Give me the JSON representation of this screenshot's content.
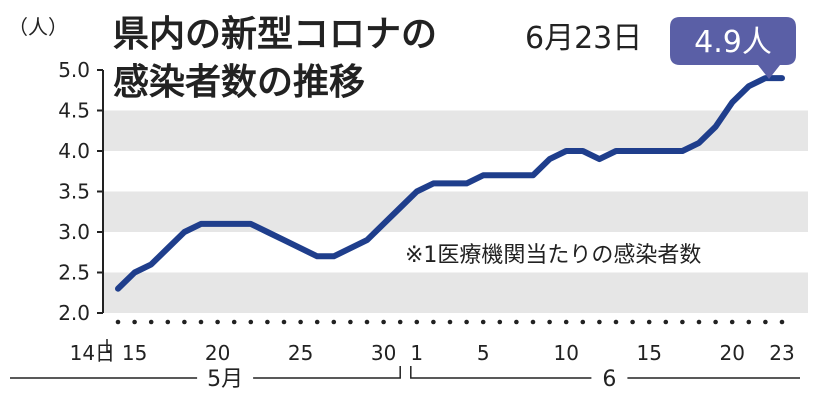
{
  "chart_data": {
    "type": "line",
    "title_line1": "県内の新型コロナの",
    "title_line2": "感染者数の推移",
    "date_label": "6月23日",
    "latest_badge": "4.9人",
    "y_unit": "（人）",
    "note": "※1医療機関当たりの感染者数",
    "ylim": [
      2.0,
      5.0
    ],
    "y_ticks": [
      2.0,
      2.5,
      3.0,
      3.5,
      4.0,
      4.5,
      5.0
    ],
    "y_tick_labels": [
      "2.0",
      "2.5",
      "3.0",
      "3.5",
      "4.0",
      "4.5",
      "5.0"
    ],
    "x_tick_labels": [
      "14日",
      "15",
      "20",
      "25",
      "30",
      "1",
      "5",
      "10",
      "15",
      "20",
      "23"
    ],
    "months": [
      "5月",
      "6"
    ],
    "grid": "horizontal bands",
    "series": [
      {
        "values": [
          2.3,
          2.5,
          2.6,
          2.8,
          3.0,
          3.1,
          3.1,
          3.1,
          3.1,
          3.0,
          2.9,
          2.8,
          2.7,
          2.7,
          2.8,
          2.9,
          3.1,
          3.3,
          3.5,
          3.6,
          3.6,
          3.6,
          3.7,
          3.7,
          3.7,
          3.7,
          3.9,
          4.0,
          4.0,
          3.9,
          4.0,
          4.0,
          4.0,
          4.0,
          4.0,
          4.1,
          4.3,
          4.6,
          4.8,
          4.9,
          4.9
        ]
      }
    ],
    "colors": {
      "line": "#1f3e8c",
      "band": "#e6e6e6",
      "badge": "#5a5fa6",
      "text": "#222222"
    }
  }
}
